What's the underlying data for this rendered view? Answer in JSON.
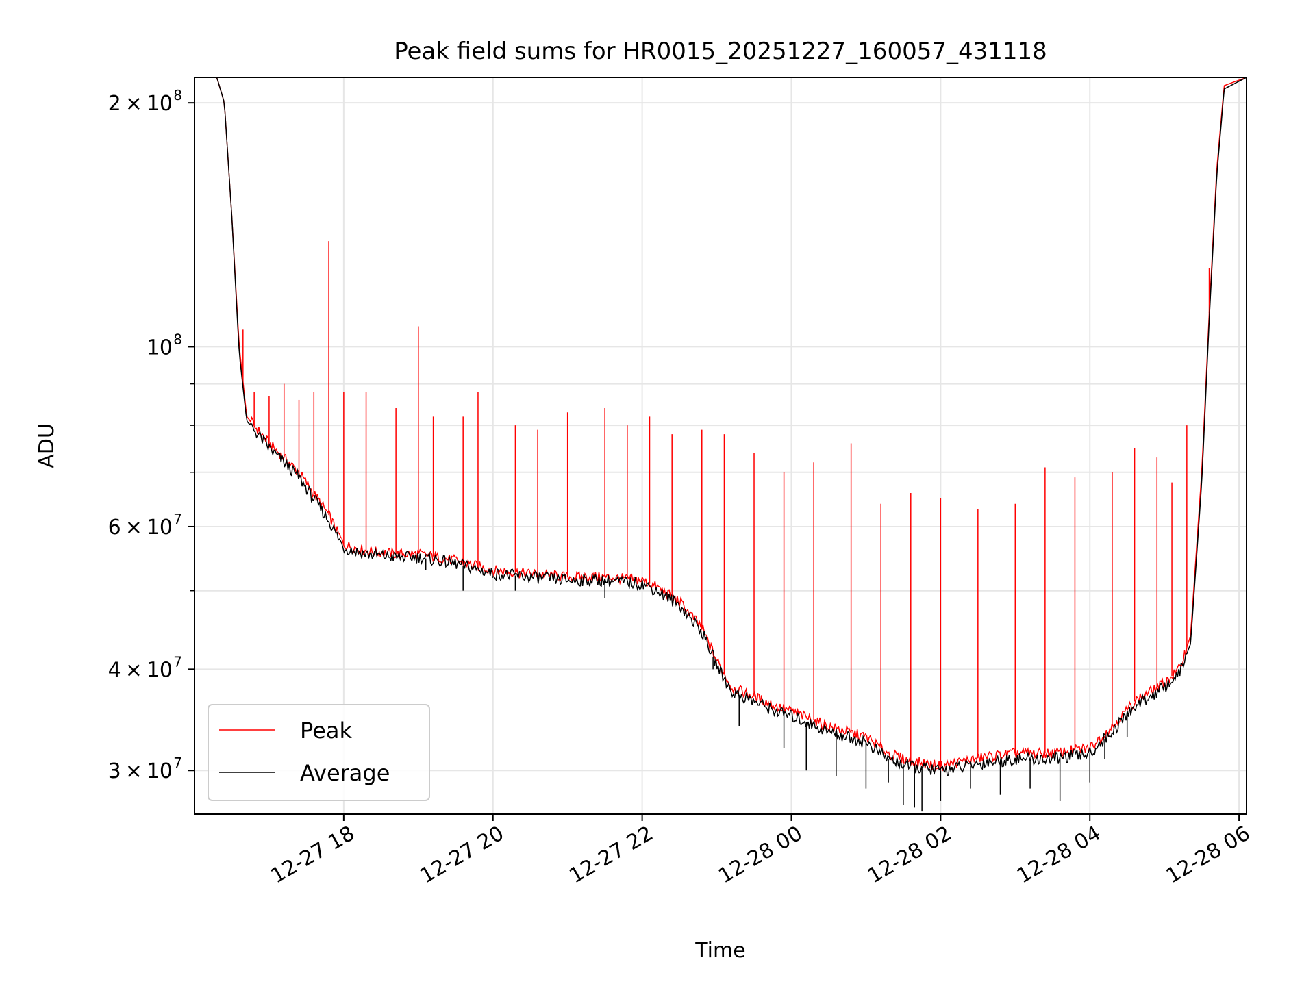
{
  "chart_data": {
    "type": "line",
    "title": "Peak field sums for HR0015_20251227_160057_431118",
    "xlabel": "Time",
    "ylabel": "ADU",
    "yscale": "log",
    "xlim": [
      16.0,
      30.1
    ],
    "ylim": [
      26500000,
      215000000
    ],
    "grid": true,
    "legend_position": "lower-left",
    "x_ticks": [
      {
        "value": 18,
        "label": "12-27 18"
      },
      {
        "value": 20,
        "label": "12-27 20"
      },
      {
        "value": 22,
        "label": "12-27 22"
      },
      {
        "value": 24,
        "label": "12-28 00"
      },
      {
        "value": 26,
        "label": "12-28 02"
      },
      {
        "value": 28,
        "label": "12-28 04"
      },
      {
        "value": 30,
        "label": "12-28 06"
      }
    ],
    "y_ticks": [
      {
        "value": 200000000,
        "mantissa": "2",
        "exponent": "8"
      },
      {
        "value": 100000000,
        "mantissa": "",
        "exponent": "8"
      },
      {
        "value": 60000000,
        "mantissa": "6",
        "exponent": "7"
      },
      {
        "value": 40000000,
        "mantissa": "4",
        "exponent": "7"
      },
      {
        "value": 30000000,
        "mantissa": "3",
        "exponent": "7"
      }
    ],
    "y_minor_ticks": [
      90000000,
      80000000,
      70000000,
      50000000
    ],
    "series": [
      {
        "name": "Peak",
        "color": "#ff0000",
        "x": [
          16.0,
          16.3,
          16.4,
          16.5,
          16.6,
          16.7,
          17.0,
          17.4,
          17.8,
          18.0,
          18.3,
          18.7,
          19.0,
          19.5,
          20.0,
          20.5,
          21.0,
          21.5,
          22.0,
          22.2,
          22.5,
          22.8,
          23.0,
          23.2,
          23.5,
          23.8,
          24.0,
          24.5,
          25.0,
          25.3,
          25.6,
          26.0,
          26.3,
          26.6,
          27.0,
          27.5,
          28.0,
          28.3,
          28.6,
          29.0,
          29.2,
          29.35,
          29.5,
          29.6,
          29.7,
          29.8,
          30.1
        ],
        "values": [
          215000000,
          215000000,
          200000000,
          145000000,
          100000000,
          82000000,
          76000000,
          70000000,
          62000000,
          57000000,
          56000000,
          55500000,
          55500000,
          54500000,
          53000000,
          52500000,
          52000000,
          52000000,
          51500000,
          50500000,
          48500000,
          45000000,
          41000000,
          38000000,
          37000000,
          36000000,
          35500000,
          34000000,
          33000000,
          31500000,
          30800000,
          30400000,
          30800000,
          31200000,
          31500000,
          31500000,
          32000000,
          34000000,
          36500000,
          38500000,
          40000000,
          44000000,
          70000000,
          110000000,
          165000000,
          210000000,
          215000000
        ]
      },
      {
        "name": "Average",
        "color": "#000000",
        "x": [
          16.0,
          16.3,
          16.4,
          16.5,
          16.6,
          16.7,
          17.0,
          17.4,
          17.8,
          18.0,
          18.3,
          18.7,
          19.0,
          19.5,
          20.0,
          20.5,
          21.0,
          21.5,
          22.0,
          22.2,
          22.5,
          22.8,
          23.0,
          23.2,
          23.5,
          23.8,
          24.0,
          24.5,
          25.0,
          25.3,
          25.6,
          26.0,
          26.3,
          26.6,
          27.0,
          27.5,
          28.0,
          28.3,
          28.6,
          29.0,
          29.2,
          29.35,
          29.5,
          29.6,
          29.7,
          29.8,
          30.1
        ],
        "values": [
          215000000,
          215000000,
          200000000,
          145000000,
          98000000,
          81000000,
          75000000,
          69000000,
          61000000,
          56500000,
          55500000,
          55000000,
          55000000,
          54000000,
          52500000,
          52000000,
          51500000,
          51500000,
          51000000,
          50000000,
          48000000,
          44500000,
          40500000,
          37500000,
          36500000,
          35500000,
          35000000,
          33500000,
          32500000,
          31000000,
          30300000,
          30000000,
          30300000,
          30700000,
          31000000,
          31000000,
          31500000,
          33500000,
          36000000,
          38000000,
          39500000,
          43000000,
          68000000,
          108000000,
          162000000,
          208000000,
          215000000
        ]
      }
    ],
    "peak_spikes": [
      {
        "x": 16.65,
        "value": 105000000
      },
      {
        "x": 16.8,
        "value": 88000000
      },
      {
        "x": 17.0,
        "value": 87000000
      },
      {
        "x": 17.2,
        "value": 90000000
      },
      {
        "x": 17.4,
        "value": 86000000
      },
      {
        "x": 17.6,
        "value": 88000000
      },
      {
        "x": 17.8,
        "value": 135000000
      },
      {
        "x": 18.0,
        "value": 88000000
      },
      {
        "x": 18.3,
        "value": 88000000
      },
      {
        "x": 18.7,
        "value": 84000000
      },
      {
        "x": 19.0,
        "value": 106000000
      },
      {
        "x": 19.2,
        "value": 82000000
      },
      {
        "x": 19.6,
        "value": 82000000
      },
      {
        "x": 19.8,
        "value": 88000000
      },
      {
        "x": 20.3,
        "value": 80000000
      },
      {
        "x": 20.6,
        "value": 79000000
      },
      {
        "x": 21.0,
        "value": 83000000
      },
      {
        "x": 21.5,
        "value": 84000000
      },
      {
        "x": 21.8,
        "value": 80000000
      },
      {
        "x": 22.1,
        "value": 82000000
      },
      {
        "x": 22.4,
        "value": 78000000
      },
      {
        "x": 22.8,
        "value": 79000000
      },
      {
        "x": 23.1,
        "value": 78000000
      },
      {
        "x": 23.5,
        "value": 74000000
      },
      {
        "x": 23.9,
        "value": 70000000
      },
      {
        "x": 24.3,
        "value": 72000000
      },
      {
        "x": 24.8,
        "value": 76000000
      },
      {
        "x": 25.2,
        "value": 64000000
      },
      {
        "x": 25.6,
        "value": 66000000
      },
      {
        "x": 26.0,
        "value": 65000000
      },
      {
        "x": 26.5,
        "value": 63000000
      },
      {
        "x": 27.0,
        "value": 64000000
      },
      {
        "x": 27.4,
        "value": 71000000
      },
      {
        "x": 27.8,
        "value": 69000000
      },
      {
        "x": 28.3,
        "value": 70000000
      },
      {
        "x": 28.6,
        "value": 75000000
      },
      {
        "x": 28.9,
        "value": 73000000
      },
      {
        "x": 29.1,
        "value": 68000000
      },
      {
        "x": 29.3,
        "value": 80000000
      },
      {
        "x": 29.6,
        "value": 125000000
      }
    ],
    "average_dips": [
      {
        "x": 19.1,
        "value": 53000000
      },
      {
        "x": 19.6,
        "value": 50000000
      },
      {
        "x": 20.3,
        "value": 50000000
      },
      {
        "x": 21.5,
        "value": 49000000
      },
      {
        "x": 22.95,
        "value": 40000000
      },
      {
        "x": 23.3,
        "value": 34000000
      },
      {
        "x": 23.9,
        "value": 32000000
      },
      {
        "x": 24.2,
        "value": 30000000
      },
      {
        "x": 24.6,
        "value": 29500000
      },
      {
        "x": 25.0,
        "value": 28500000
      },
      {
        "x": 25.3,
        "value": 29000000
      },
      {
        "x": 25.5,
        "value": 27200000
      },
      {
        "x": 25.65,
        "value": 27000000
      },
      {
        "x": 25.75,
        "value": 26700000
      },
      {
        "x": 26.0,
        "value": 27500000
      },
      {
        "x": 26.4,
        "value": 28500000
      },
      {
        "x": 26.8,
        "value": 28000000
      },
      {
        "x": 27.2,
        "value": 28500000
      },
      {
        "x": 27.6,
        "value": 27500000
      },
      {
        "x": 28.0,
        "value": 29000000
      },
      {
        "x": 28.2,
        "value": 31000000
      },
      {
        "x": 28.5,
        "value": 33000000
      }
    ]
  }
}
